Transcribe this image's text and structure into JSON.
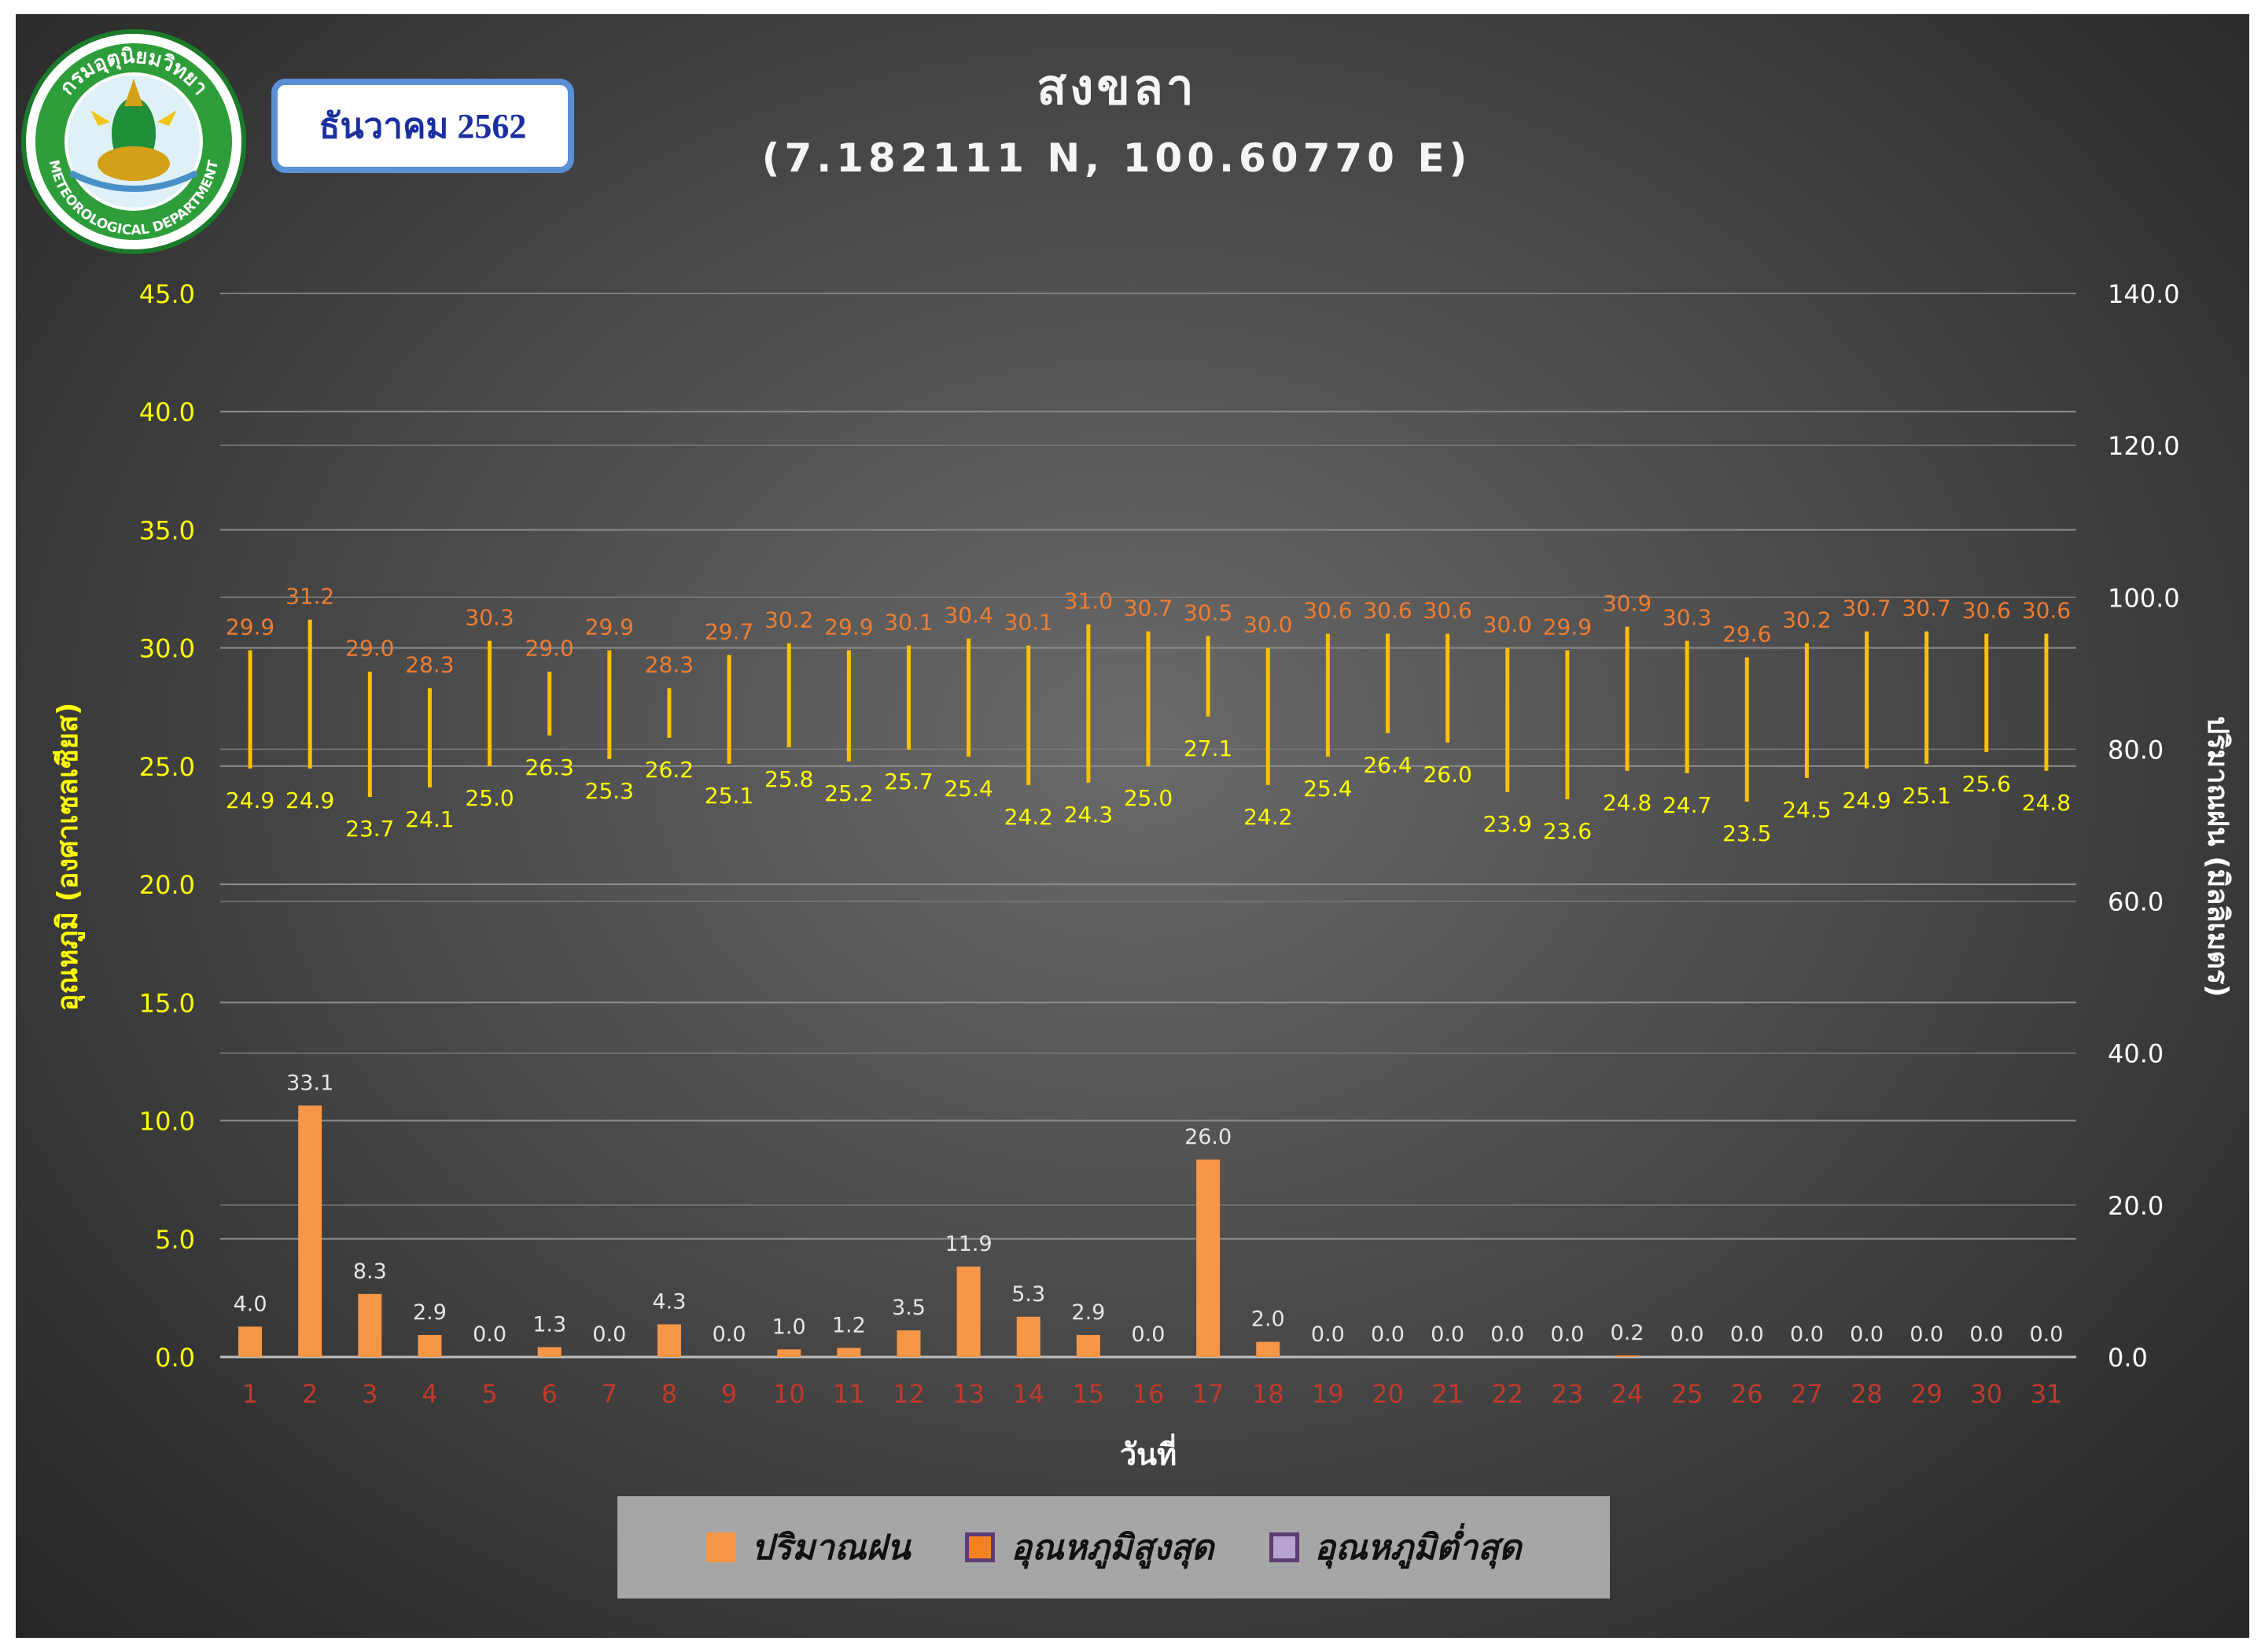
{
  "header": {
    "month_label": "ธันวาคม 2562",
    "title": "สงขลา",
    "subtitle": "(7.182111 N, 100.60770 E)",
    "logo": {
      "icon": "meteorological-department-seal-icon",
      "top_text": "กรมอุตุนิยมวิทยา",
      "bottom_text": "METEOROLOGICAL DEPARTMENT"
    }
  },
  "colors": {
    "background": "#3a3a3a",
    "left_axis_text": "#ffff00",
    "right_axis_text": "#ffffff",
    "rain_bar": "#f79646",
    "range_line": "#ffc000",
    "max_label": "#ed7d31",
    "min_label": "#ffff00",
    "day_label": "#c0392b",
    "legend_bg": "#a6a6a6"
  },
  "legend": [
    {
      "label": "ปริมาณฝน",
      "swatch_fill": "#f79646",
      "swatch_border": "#f79646"
    },
    {
      "label": "อุณหภูมิสูงสุด",
      "swatch_fill": "#f58220",
      "swatch_border": "#5b3d73"
    },
    {
      "label": "อุณหภูมิต่ำสุด",
      "swatch_fill": "#b7a3cf",
      "swatch_border": "#5b3d73"
    }
  ],
  "chart_data": {
    "type": "bar",
    "xlabel": "วันที่",
    "ylabel_left": "อุณหภูมิ (องศาเซลเซียส)",
    "ylabel_right": "ปริมาณฝน (มิลลิเมตร)",
    "ylim_left": [
      0,
      45
    ],
    "ylim_right": [
      0,
      140
    ],
    "yticks_left": [
      "0.0",
      "5.0",
      "10.0",
      "15.0",
      "20.0",
      "25.0",
      "30.0",
      "35.0",
      "40.0",
      "45.0"
    ],
    "yticks_right": [
      "0.0",
      "20.0",
      "40.0",
      "60.0",
      "80.0",
      "100.0",
      "120.0",
      "140.0"
    ],
    "grid": true,
    "legend_position": "bottom",
    "categories": [
      "1",
      "2",
      "3",
      "4",
      "5",
      "6",
      "7",
      "8",
      "9",
      "10",
      "11",
      "12",
      "13",
      "14",
      "15",
      "16",
      "17",
      "18",
      "19",
      "20",
      "21",
      "22",
      "23",
      "24",
      "25",
      "26",
      "27",
      "28",
      "29",
      "30",
      "31"
    ],
    "series": [
      {
        "name": "ปริมาณฝน",
        "axis": "right",
        "kind": "bar",
        "values": [
          4.0,
          33.1,
          8.3,
          2.9,
          0.0,
          1.3,
          0.0,
          4.3,
          0.0,
          1.0,
          1.2,
          3.5,
          11.9,
          5.3,
          2.9,
          0.0,
          26.0,
          2.0,
          0.0,
          0.0,
          0.0,
          0.0,
          0.0,
          0.2,
          0.0,
          0.0,
          0.0,
          0.0,
          0.0,
          0.0,
          0.0
        ]
      },
      {
        "name": "อุณหภูมิสูงสุด",
        "axis": "left",
        "kind": "range-high",
        "values": [
          29.9,
          31.2,
          29.0,
          28.3,
          30.3,
          29.0,
          29.9,
          28.3,
          29.7,
          30.2,
          29.9,
          30.1,
          30.4,
          30.1,
          31.0,
          30.7,
          30.5,
          30.0,
          30.6,
          30.6,
          30.6,
          30.0,
          29.9,
          30.9,
          30.3,
          29.6,
          30.2,
          30.7,
          30.7,
          30.6,
          30.6
        ]
      },
      {
        "name": "อุณหภูมิต่ำสุด",
        "axis": "left",
        "kind": "range-low",
        "values": [
          24.9,
          24.9,
          23.7,
          24.1,
          25.0,
          26.3,
          25.3,
          26.2,
          25.1,
          25.8,
          25.2,
          25.7,
          25.4,
          24.2,
          24.3,
          25.0,
          27.1,
          24.2,
          25.4,
          26.4,
          26.0,
          23.9,
          23.6,
          24.8,
          24.7,
          23.5,
          24.5,
          24.9,
          25.1,
          25.6,
          24.8
        ]
      }
    ]
  }
}
